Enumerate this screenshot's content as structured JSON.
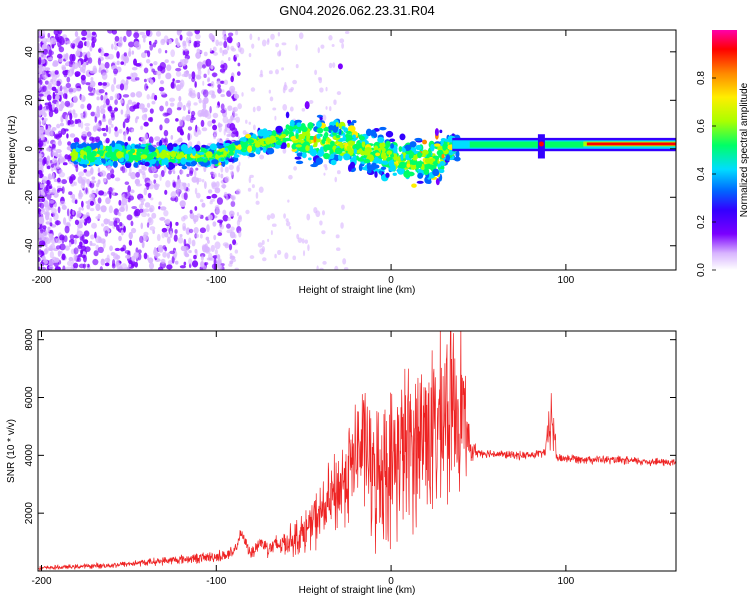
{
  "figure": {
    "title": "GN04.2026.062.23.31.R04"
  },
  "chart_data": [
    {
      "type": "heatmap",
      "title": "GN04.2026.062.23.31.R04",
      "xlabel": "Height of straight line (km)",
      "ylabel": "Frequency (Hz)",
      "xlim": [
        -202,
        163
      ],
      "ylim": [
        -50,
        49
      ],
      "x_ticks": [
        -200,
        -100,
        0,
        100
      ],
      "y_ticks": [
        -40,
        -20,
        0,
        20,
        40
      ],
      "description_series": [
        {
          "name": "ridge_center_hz",
          "x": [
            -180,
            -150,
            -120,
            -100,
            -80,
            -60,
            -45,
            -30,
            -10,
            10,
            25,
            35,
            60,
            85,
            100,
            130,
            163
          ],
          "values": [
            -2,
            -2,
            -3,
            -3,
            2,
            5,
            3,
            2,
            -1,
            -6,
            -4,
            1,
            2,
            2,
            2,
            2,
            2
          ]
        }
      ],
      "colorbar": {
        "label": "Normalized spectral amplitude",
        "range": [
          0.0,
          1.0
        ],
        "ticks": [
          0.0,
          0.2,
          0.4,
          0.6,
          0.8
        ],
        "tick_labels": [
          "0.0",
          "0.2",
          "0.4",
          "0.6",
          "0.8"
        ],
        "colormap": [
          "#ffffff",
          "#d8b4ff",
          "#7b00ff",
          "#3300ff",
          "#0066ff",
          "#00ddff",
          "#00ff66",
          "#aaff00",
          "#ffee00",
          "#ff8800",
          "#ff0000",
          "#ff00aa"
        ]
      }
    },
    {
      "type": "line",
      "xlabel": "Height of straight line (km)",
      "ylabel": "SNR (10 * v/v)",
      "xlim": [
        -202,
        163
      ],
      "ylim": [
        0,
        8300
      ],
      "x_ticks": [
        -200,
        -100,
        0,
        100
      ],
      "y_ticks": [
        2000,
        4000,
        6000,
        8000
      ],
      "series": [
        {
          "name": "SNR",
          "color": "#ee2222",
          "x": [
            -202,
            -180,
            -160,
            -140,
            -120,
            -100,
            -90,
            -86,
            -80,
            -75,
            -70,
            -60,
            -50,
            -40,
            -30,
            -20,
            -15,
            -10,
            -5,
            0,
            5,
            10,
            15,
            20,
            25,
            30,
            35,
            40,
            45,
            50,
            60,
            70,
            80,
            88,
            92,
            95,
            100,
            120,
            140,
            163
          ],
          "values": [
            100,
            150,
            200,
            300,
            400,
            500,
            600,
            1300,
            600,
            1000,
            800,
            1000,
            1300,
            2000,
            2800,
            4000,
            4500,
            3000,
            3700,
            3500,
            4200,
            4300,
            4500,
            5000,
            4700,
            5300,
            5600,
            6000,
            4200,
            4100,
            4050,
            4000,
            4000,
            4100,
            5300,
            3900,
            3900,
            3850,
            3800,
            3750
          ],
          "spread": [
            80,
            100,
            120,
            150,
            200,
            250,
            300,
            200,
            300,
            350,
            400,
            600,
            900,
            1300,
            1900,
            2400,
            2700,
            2900,
            3100,
            3300,
            3400,
            3500,
            3600,
            3700,
            3700,
            3800,
            3800,
            3600,
            600,
            200,
            180,
            180,
            180,
            200,
            1500,
            200,
            200,
            180,
            180,
            180
          ]
        }
      ]
    }
  ]
}
